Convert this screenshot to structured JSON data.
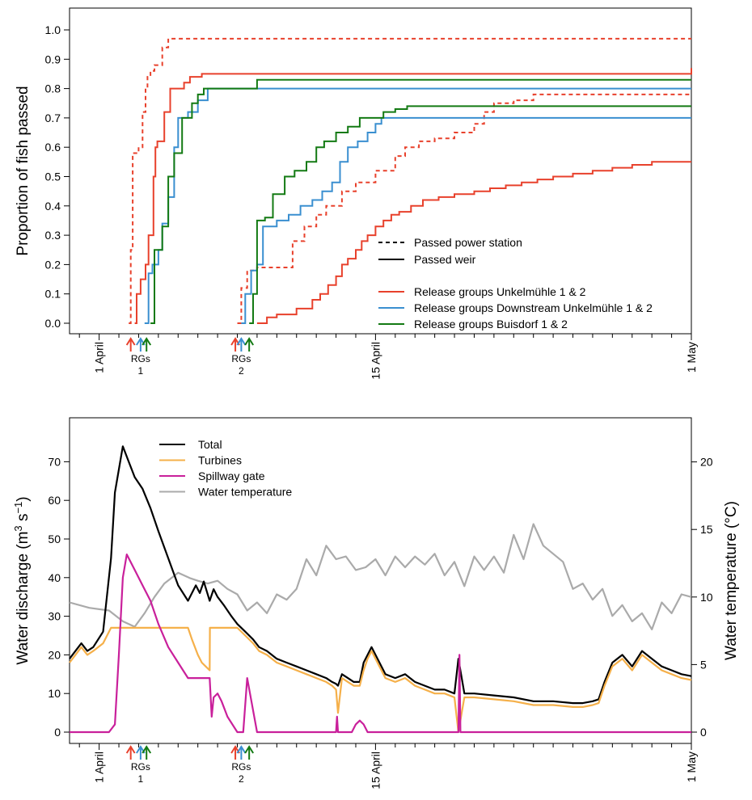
{
  "chart_data": [
    {
      "type": "line",
      "step": true,
      "ylabel": "Proportion of fish passed",
      "ylim": [
        0,
        1.0
      ],
      "yticks": [
        "0.0",
        "0.1",
        "0.2",
        "0.3",
        "0.4",
        "0.5",
        "0.6",
        "0.7",
        "0.8",
        "0.9",
        "1.0"
      ],
      "xlim": [
        -1.5,
        30
      ],
      "xticks": [
        {
          "day": 0,
          "label": "1 April"
        },
        {
          "day": 14,
          "label": "15 April"
        },
        {
          "day": 30,
          "label": "1 May"
        }
      ],
      "release_markers": [
        {
          "label_top": "RGs",
          "label_bottom": "1",
          "days": [
            1.6,
            2.1,
            2.4
          ],
          "colors": [
            "#e8412c",
            "#3a8fd0",
            "#137a13"
          ]
        },
        {
          "label_top": "RGs",
          "label_bottom": "2",
          "days": [
            6.9,
            7.2,
            7.6
          ],
          "colors": [
            "#e8412c",
            "#3a8fd0",
            "#137a13"
          ]
        }
      ],
      "legend": {
        "style_entries": [
          {
            "label": "Passed power station",
            "dash": "dashed"
          },
          {
            "label": "Passed weir",
            "dash": "solid"
          }
        ],
        "color_entries": [
          {
            "label": "Release groups Unkelmühle 1 & 2",
            "color": "#e8412c"
          },
          {
            "label": "Release groups Downstream Unkelmühle 1 & 2",
            "color": "#3a8fd0"
          },
          {
            "label": "Release groups Buisdorf 1 & 2",
            "color": "#137a13"
          }
        ]
      },
      "series": [
        {
          "color": "#e8412c",
          "dash": "dashed",
          "x": [
            1.5,
            1.6,
            1.7,
            2.0,
            2.2,
            2.35,
            2.45,
            2.6,
            2.8,
            3.2,
            3.5,
            30
          ],
          "y": [
            0,
            0.25,
            0.58,
            0.6,
            0.72,
            0.8,
            0.84,
            0.86,
            0.88,
            0.94,
            0.97,
            0.97
          ]
        },
        {
          "color": "#e8412c",
          "dash": "solid",
          "x": [
            1.8,
            1.9,
            2.1,
            2.35,
            2.5,
            2.75,
            2.85,
            2.95,
            3.3,
            3.6,
            4.3,
            4.6,
            5.2,
            30
          ],
          "y": [
            0,
            0.1,
            0.15,
            0.2,
            0.3,
            0.5,
            0.6,
            0.62,
            0.72,
            0.8,
            0.82,
            0.84,
            0.85,
            0.87
          ]
        },
        {
          "color": "#3a8fd0",
          "dash": "solid",
          "x": [
            2.3,
            2.5,
            2.7,
            3.0,
            3.2,
            3.5,
            3.8,
            4.0,
            4.5,
            5.0,
            5.5,
            30
          ],
          "y": [
            0,
            0.17,
            0.2,
            0.25,
            0.34,
            0.43,
            0.6,
            0.7,
            0.72,
            0.76,
            0.8,
            0.8
          ]
        },
        {
          "color": "#137a13",
          "dash": "solid",
          "x": [
            2.6,
            2.8,
            3.2,
            3.5,
            3.8,
            4.2,
            4.7,
            5.0,
            5.3,
            8.0,
            30
          ],
          "y": [
            0,
            0.25,
            0.33,
            0.5,
            0.58,
            0.7,
            0.75,
            0.78,
            0.8,
            0.83,
            0.83
          ]
        },
        {
          "color": "#e8412c",
          "dash": "dashed",
          "x": [
            7.0,
            7.2,
            7.5,
            8.0,
            9.0,
            9.8,
            10.4,
            11.0,
            11.5,
            12.3,
            13.0,
            14.0,
            15.0,
            15.5,
            16.2,
            17.0,
            18.0,
            19.0,
            19.5,
            20.0,
            21.0,
            22.0,
            30
          ],
          "y": [
            0,
            0.12,
            0.18,
            0.19,
            0.19,
            0.28,
            0.33,
            0.37,
            0.4,
            0.45,
            0.48,
            0.52,
            0.57,
            0.6,
            0.62,
            0.63,
            0.65,
            0.68,
            0.72,
            0.75,
            0.76,
            0.78,
            0.78
          ]
        },
        {
          "color": "#3a8fd0",
          "dash": "solid",
          "x": [
            7.2,
            7.4,
            7.7,
            8.0,
            8.3,
            9.0,
            9.6,
            10.2,
            10.8,
            11.3,
            11.8,
            12.2,
            12.6,
            13.1,
            13.6,
            14.0,
            14.3,
            14.6,
            15.0,
            15.5,
            16.0,
            17.0,
            30
          ],
          "y": [
            0,
            0.1,
            0.18,
            0.2,
            0.33,
            0.35,
            0.37,
            0.4,
            0.42,
            0.45,
            0.48,
            0.55,
            0.6,
            0.62,
            0.65,
            0.68,
            0.7,
            0.7,
            0.7,
            0.7,
            0.7,
            0.7,
            0.7
          ]
        },
        {
          "color": "#137a13",
          "dash": "solid",
          "x": [
            7.6,
            7.8,
            8.0,
            8.4,
            8.8,
            9.4,
            9.9,
            10.5,
            11.0,
            11.4,
            12.0,
            12.6,
            13.2,
            13.8,
            14.4,
            15.0,
            15.6,
            16.4,
            17.2,
            30
          ],
          "y": [
            0,
            0.1,
            0.35,
            0.36,
            0.44,
            0.5,
            0.52,
            0.55,
            0.6,
            0.62,
            0.65,
            0.67,
            0.7,
            0.7,
            0.72,
            0.73,
            0.74,
            0.74,
            0.74,
            0.74
          ]
        },
        {
          "color": "#e8412c",
          "dash": "solid",
          "x": [
            8.0,
            8.5,
            9.0,
            10.0,
            10.8,
            11.2,
            11.6,
            12.0,
            12.3,
            12.6,
            13.0,
            13.3,
            13.6,
            14.0,
            14.4,
            14.8,
            15.2,
            15.8,
            16.4,
            17.2,
            18.0,
            19.0,
            19.8,
            20.6,
            21.4,
            22.2,
            23.0,
            24.0,
            25.0,
            26.0,
            27.0,
            28.0,
            29.0,
            30
          ],
          "y": [
            0,
            0.02,
            0.03,
            0.05,
            0.08,
            0.1,
            0.13,
            0.16,
            0.2,
            0.22,
            0.25,
            0.28,
            0.3,
            0.33,
            0.35,
            0.37,
            0.38,
            0.4,
            0.42,
            0.43,
            0.44,
            0.45,
            0.46,
            0.47,
            0.48,
            0.49,
            0.5,
            0.51,
            0.52,
            0.53,
            0.54,
            0.55,
            0.55,
            0.55
          ]
        }
      ]
    },
    {
      "type": "line",
      "ylabel": "Water discharge (m",
      "ylabel_sup1": "3",
      "ylabel_mid": " s",
      "ylabel_sup2": "−1",
      "ylabel_end": ")",
      "ylim": [
        0,
        75
      ],
      "yticks": [
        0,
        10,
        20,
        30,
        40,
        50,
        60,
        70
      ],
      "y2label": "Water temperature (°C)",
      "y2lim": [
        0,
        22
      ],
      "y2ticks": [
        0,
        5,
        10,
        15,
        20
      ],
      "xlim": [
        -1.5,
        30
      ],
      "xticks": [
        {
          "day": 0,
          "label": "1 April"
        },
        {
          "day": 14,
          "label": "15 April"
        },
        {
          "day": 30,
          "label": "1 May"
        }
      ],
      "release_markers": [
        {
          "label_top": "RGs",
          "label_bottom": "1",
          "days": [
            1.6,
            2.1,
            2.4
          ],
          "colors": [
            "#e8412c",
            "#3a8fd0",
            "#137a13"
          ]
        },
        {
          "label_top": "RGs",
          "label_bottom": "2",
          "days": [
            6.9,
            7.2,
            7.6
          ],
          "colors": [
            "#e8412c",
            "#3a8fd0",
            "#137a13"
          ]
        }
      ],
      "legend": [
        {
          "label": "Total",
          "color": "#000000"
        },
        {
          "label": "Turbines",
          "color": "#f5b04a"
        },
        {
          "label": "Spillway gate",
          "color": "#c9209b"
        },
        {
          "label": "Water temperature",
          "color": "#aaaaaa"
        }
      ],
      "series": [
        {
          "name": "Water temperature",
          "axis": "right",
          "color": "#aaaaaa",
          "x": [
            -1.5,
            -0.5,
            0.5,
            1.2,
            1.8,
            2.3,
            2.8,
            3.3,
            4.0,
            4.6,
            5.0,
            5.5,
            6.0,
            6.5,
            7.0,
            7.5,
            8.0,
            8.5,
            9.0,
            9.5,
            10.0,
            10.5,
            11.0,
            11.5,
            12.0,
            12.5,
            13.0,
            13.5,
            14.0,
            14.5,
            15.0,
            15.5,
            16.0,
            16.5,
            17.0,
            17.5,
            18.0,
            18.5,
            19.0,
            19.5,
            20.0,
            20.5,
            21.0,
            21.5,
            22.0,
            22.5,
            23.0,
            23.5,
            24.0,
            24.5,
            25.0,
            25.5,
            26.0,
            26.5,
            27.0,
            27.5,
            28.0,
            28.5,
            29.0,
            29.5,
            30.0
          ],
          "y": [
            9.6,
            9.2,
            9.0,
            8.2,
            7.8,
            8.8,
            10.0,
            11.0,
            11.8,
            11.4,
            11.2,
            11.0,
            11.2,
            10.6,
            10.2,
            9.0,
            9.6,
            8.8,
            10.2,
            9.8,
            10.6,
            12.8,
            11.6,
            13.8,
            12.8,
            13.0,
            12.0,
            12.2,
            12.8,
            11.6,
            13.0,
            12.2,
            13.0,
            12.4,
            13.2,
            11.6,
            12.6,
            10.8,
            13.0,
            12.0,
            13.0,
            11.8,
            14.6,
            12.8,
            15.4,
            13.8,
            13.2,
            12.6,
            10.6,
            11.0,
            9.8,
            10.6,
            8.6,
            9.4,
            8.2,
            8.8,
            7.6,
            9.6,
            8.8,
            10.2,
            10.0
          ]
        },
        {
          "name": "Total",
          "axis": "left",
          "color": "#000000",
          "x": [
            -1.5,
            -1.2,
            -0.9,
            -0.6,
            -0.3,
            0.2,
            0.6,
            0.8,
            1.2,
            1.5,
            1.8,
            2.2,
            2.6,
            3.0,
            3.5,
            4.0,
            4.5,
            4.9,
            5.1,
            5.3,
            5.6,
            5.8,
            6.0,
            6.3,
            6.7,
            7.0,
            7.4,
            7.8,
            8.1,
            8.5,
            9.0,
            9.5,
            10.0,
            10.5,
            11.0,
            11.5,
            11.8,
            12.0,
            12.1,
            12.3,
            12.6,
            12.9,
            13.2,
            13.4,
            13.6,
            13.8,
            14.5,
            15.0,
            15.5,
            16.0,
            16.5,
            17.0,
            17.5,
            18.0,
            18.2,
            18.5,
            19.0,
            20.0,
            21.0,
            22.0,
            23.0,
            24.0,
            24.5,
            25.0,
            25.3,
            25.6,
            26.0,
            26.5,
            27.0,
            27.5,
            28.0,
            28.5,
            29.0,
            29.5,
            30.0
          ],
          "y": [
            19,
            21,
            23,
            21,
            22,
            26,
            45,
            62,
            74,
            70,
            66,
            63,
            58,
            52,
            45,
            38,
            34,
            38,
            36,
            39,
            34,
            37,
            35,
            33,
            30,
            28,
            26,
            24,
            22,
            21,
            19,
            18,
            17,
            16,
            15,
            14,
            13,
            12.5,
            12,
            15,
            14,
            13,
            13,
            18,
            20,
            22,
            15,
            14,
            15,
            13,
            12,
            11,
            11,
            10,
            19,
            10,
            10,
            9.5,
            9,
            8,
            8,
            7.5,
            7.5,
            8,
            8.5,
            13,
            18,
            20,
            17,
            21,
            19,
            17,
            16,
            15,
            14.5
          ]
        },
        {
          "name": "Turbines",
          "axis": "left",
          "color": "#f5b04a",
          "x": [
            -1.5,
            -1.2,
            -0.9,
            -0.6,
            -0.3,
            0.2,
            0.6,
            1.0,
            4.5,
            4.7,
            5.0,
            5.2,
            5.6,
            5.61,
            7.0,
            7.4,
            7.8,
            8.1,
            8.5,
            9.0,
            9.5,
            10.0,
            10.5,
            11.0,
            11.5,
            11.8,
            12.0,
            12.1,
            12.3,
            12.6,
            12.9,
            13.2,
            13.4,
            13.6,
            13.8,
            14.5,
            15.0,
            15.5,
            16.0,
            16.5,
            17.0,
            17.5,
            18.0,
            18.2,
            18.5,
            19.0,
            20.0,
            21.0,
            22.0,
            23.0,
            24.0,
            24.5,
            25.0,
            25.3,
            25.6,
            26.0,
            26.5,
            27.0,
            27.5,
            28.0,
            28.5,
            29.0,
            29.5,
            30.0
          ],
          "y": [
            18,
            20,
            22,
            20,
            21,
            23,
            27,
            27,
            27,
            24,
            20,
            18,
            16,
            27,
            27,
            25,
            23,
            21,
            20,
            18,
            17,
            16,
            15,
            14,
            13,
            12,
            11,
            5,
            14,
            13,
            12,
            12,
            16,
            19,
            21,
            14,
            13,
            14,
            12,
            11,
            10,
            10,
            9,
            0,
            9,
            9,
            8.5,
            8,
            7,
            7,
            6.5,
            6.5,
            7,
            7.5,
            12,
            17,
            19,
            16,
            20,
            18,
            16,
            15,
            14,
            13.5
          ]
        },
        {
          "name": "Spillway gate",
          "axis": "left",
          "color": "#c9209b",
          "x": [
            -1.5,
            0.5,
            0.8,
            1.0,
            1.2,
            1.4,
            1.8,
            2.2,
            2.6,
            3.0,
            3.5,
            4.0,
            4.5,
            5.0,
            5.5,
            5.6,
            5.7,
            5.8,
            6.0,
            6.2,
            6.5,
            7.0,
            7.3,
            7.5,
            8.0,
            12.0,
            12.05,
            12.1,
            12.8,
            13.0,
            13.2,
            13.4,
            13.6,
            18.2,
            18.25,
            18.3,
            30
          ],
          "y": [
            0,
            0,
            2,
            20,
            40,
            46,
            42,
            38,
            34,
            28,
            22,
            18,
            14,
            14,
            14,
            14,
            4,
            9,
            10,
            8,
            4,
            0,
            0,
            14,
            0,
            0,
            4,
            0,
            0,
            2,
            3,
            2,
            0,
            0,
            20,
            0,
            0
          ]
        }
      ]
    }
  ]
}
